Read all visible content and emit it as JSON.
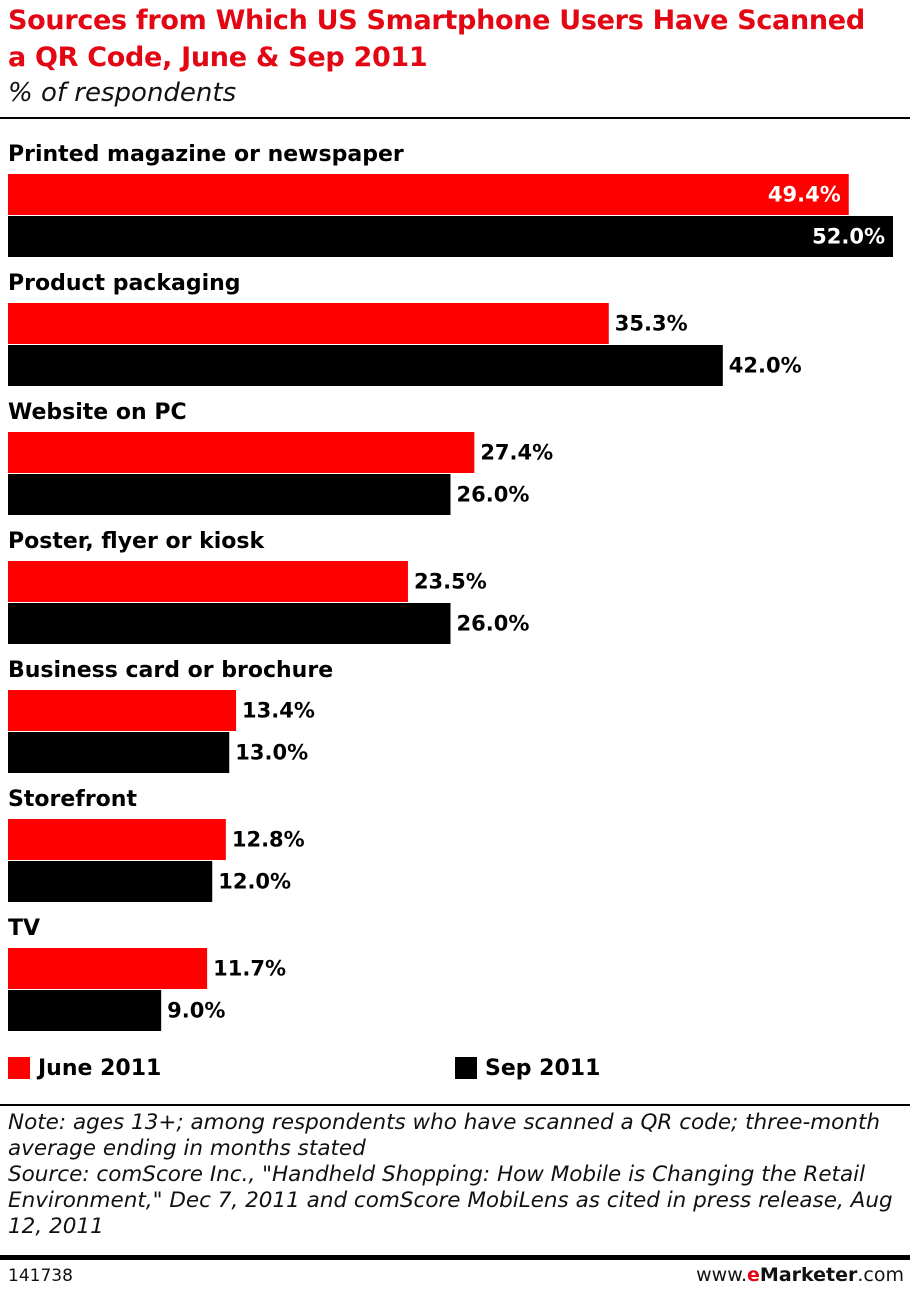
{
  "chart_data": {
    "type": "hbar",
    "title": "Sources from Which US Smartphone Users Have Scanned a QR Code, June & Sep 2011",
    "subtitle": "% of respondents",
    "categories": [
      "Printed magazine or newspaper",
      "Product packaging",
      "Website on PC",
      "Poster, flyer or kiosk",
      "Business card or brochure",
      "Storefront",
      "TV"
    ],
    "series": [
      {
        "name": "June 2011",
        "color": "#ff0000",
        "values": [
          49.4,
          35.3,
          27.4,
          23.5,
          13.4,
          12.8,
          11.7
        ],
        "value_labels": [
          "49.4%",
          "35.3%",
          "27.4%",
          "23.5%",
          "13.4%",
          "12.8%",
          "11.7%"
        ]
      },
      {
        "name": "Sep 2011",
        "color": "#000000",
        "values": [
          52.0,
          42.0,
          26.0,
          26.0,
          13.0,
          12.0,
          9.0
        ],
        "value_labels": [
          "52.0%",
          "42.0%",
          "26.0%",
          "26.0%",
          "13.0%",
          "12.0%",
          "9.0%"
        ]
      }
    ],
    "xlim": [
      0,
      52
    ],
    "notes": "Note: ages 13+; among respondents who have scanned a QR code; three-month average ending in months stated",
    "source": "Source: comScore Inc., \"Handheld Shopping: How Mobile is Changing the Retail Environment,\" Dec 7, 2011 and comScore MobiLens as cited in press release, Aug 12, 2011",
    "chart_id": "141738",
    "site": {
      "prefix": "www.",
      "brand_e": "e",
      "brand": "Marketer",
      "suffix": ".com"
    }
  }
}
